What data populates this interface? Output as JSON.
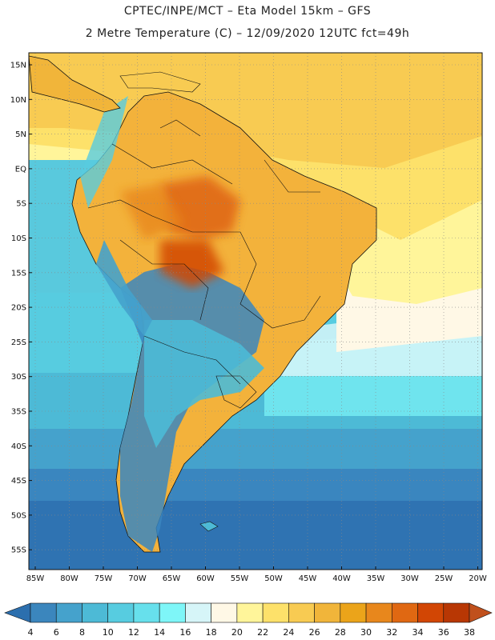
{
  "header": {
    "line1": "CPTEC/INPE/MCT –  Eta Model 15km – GFS",
    "line2": "2 Metre Temperature (C) – 12/09/2020 12UTC fct=49h"
  },
  "map": {
    "lat_labels": [
      "15N",
      "10N",
      "5N",
      "EQ",
      "5S",
      "10S",
      "15S",
      "20S",
      "25S",
      "30S",
      "35S",
      "40S",
      "45S",
      "50S",
      "55S"
    ],
    "lon_labels": [
      "85W",
      "80W",
      "75W",
      "70W",
      "65W",
      "60W",
      "55W",
      "50W",
      "45W",
      "40W",
      "35W",
      "30W",
      "25W",
      "20W"
    ]
  },
  "colorbar": {
    "ticks": [
      "4",
      "6",
      "8",
      "10",
      "12",
      "14",
      "16",
      "18",
      "20",
      "22",
      "24",
      "26",
      "28",
      "30",
      "32",
      "34",
      "36",
      "38"
    ],
    "colors": [
      "#2c6fae",
      "#3b86bd",
      "#45a2cc",
      "#4dbad6",
      "#57cce0",
      "#67e0ec",
      "#7ef6f8",
      "#d6f5f8",
      "#fff8e6",
      "#fff59a",
      "#fde16a",
      "#f8cb52",
      "#f1b53a",
      "#eba41a",
      "#e8871c",
      "#e06812",
      "#d24604",
      "#b83704",
      "#c0501c"
    ]
  }
}
